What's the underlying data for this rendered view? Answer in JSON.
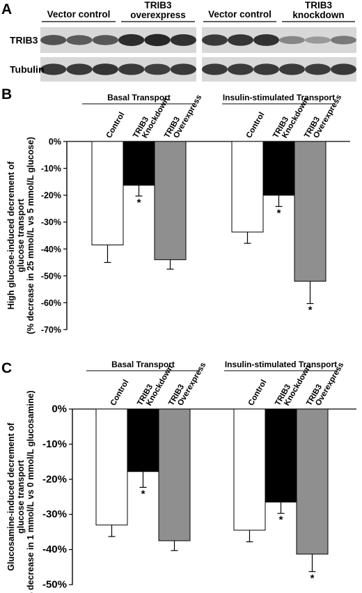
{
  "panels": [
    "A",
    "B",
    "C"
  ],
  "blot": {
    "left_groups": [
      {
        "label_lines": [
          "Vector control"
        ]
      },
      {
        "label_lines": [
          "TRIB3",
          "overexpress"
        ]
      }
    ],
    "right_groups": [
      {
        "label_lines": [
          "Vector control"
        ]
      },
      {
        "label_lines": [
          "TRIB3",
          "knockdown"
        ]
      }
    ],
    "rows": [
      {
        "label": "TRIB3",
        "left_intensity": [
          0.72,
          0.68,
          0.7,
          0.92,
          0.95,
          0.9
        ],
        "right_intensity": [
          0.85,
          0.88,
          0.9,
          0.45,
          0.35,
          0.52
        ]
      },
      {
        "label": "Tubulin",
        "left_intensity": [
          0.85,
          0.85,
          0.88,
          0.85,
          0.82,
          0.85
        ],
        "right_intensity": [
          0.85,
          0.85,
          0.86,
          0.85,
          0.84,
          0.86
        ]
      }
    ]
  },
  "chart_data": [
    {
      "type": "bar",
      "panel": "B",
      "ylabel_lines": [
        "High glucose-induced decrement of",
        "glucose transport",
        "(% decrease in 25 mmol/L vs 5 mmol/L glucose)"
      ],
      "ylim": [
        -70,
        0
      ],
      "yticks": [
        0,
        -10,
        -20,
        -30,
        -40,
        -50,
        -60,
        -70
      ],
      "tick_labels": [
        "0%",
        "-10%",
        "-20%",
        "-30%",
        "-40%",
        "-50%",
        "-60%",
        "-70%"
      ],
      "groups": [
        {
          "label": "Basal Transport",
          "categories": [
            [
              "Control"
            ],
            [
              "TRIB3",
              "Knockdown"
            ],
            [
              "TRIB3",
              "Overexpress"
            ]
          ],
          "values": [
            -38.5,
            -16.3,
            -44.0
          ],
          "errors": [
            6.5,
            4.0,
            3.5
          ],
          "significant": [
            false,
            true,
            false
          ]
        },
        {
          "label": "Insulin-stimulated Transport",
          "categories": [
            [
              "Control"
            ],
            [
              "TRIB3",
              "Knockdown"
            ],
            [
              "TRIB3",
              "Overexpress"
            ]
          ],
          "values": [
            -33.7,
            -20.0,
            -52.0
          ],
          "errors": [
            4.2,
            4.2,
            8.3
          ],
          "significant": [
            false,
            true,
            true
          ]
        }
      ],
      "fill_colors": [
        "#ffffff",
        "#000000",
        "#8f8f8f"
      ],
      "significance_mark": "*"
    },
    {
      "type": "bar",
      "panel": "C",
      "ylabel_lines": [
        "Glucosamine-induced decrement of",
        "glucose transport",
        "(% decrease in 1 mmol/L vs 0 mmol/L glucosamine)"
      ],
      "ylim": [
        -50,
        0
      ],
      "yticks": [
        0,
        -10,
        -20,
        -30,
        -40,
        -50
      ],
      "tick_labels": [
        "0%",
        "-10%",
        "-20%",
        "-30%",
        "-40%",
        "-50%"
      ],
      "groups": [
        {
          "label": "Basal Transport",
          "categories": [
            [
              "Control"
            ],
            [
              "TRIB3",
              "Knockdown"
            ],
            [
              "TRIB3",
              "Overexpress"
            ]
          ],
          "values": [
            -33.0,
            -17.8,
            -37.5
          ],
          "errors": [
            3.3,
            4.5,
            2.8
          ],
          "significant": [
            false,
            true,
            false
          ]
        },
        {
          "label": "Insulin-stimulated Transport",
          "categories": [
            [
              "Control"
            ],
            [
              "TRIB3",
              "Knockdown"
            ],
            [
              "TRIB3",
              "Overexpress"
            ]
          ],
          "values": [
            -34.5,
            -26.5,
            -41.3
          ],
          "errors": [
            3.3,
            3.2,
            5.0
          ],
          "significant": [
            false,
            true,
            true
          ]
        }
      ],
      "fill_colors": [
        "#ffffff",
        "#000000",
        "#8f8f8f"
      ],
      "significance_mark": "*"
    }
  ]
}
